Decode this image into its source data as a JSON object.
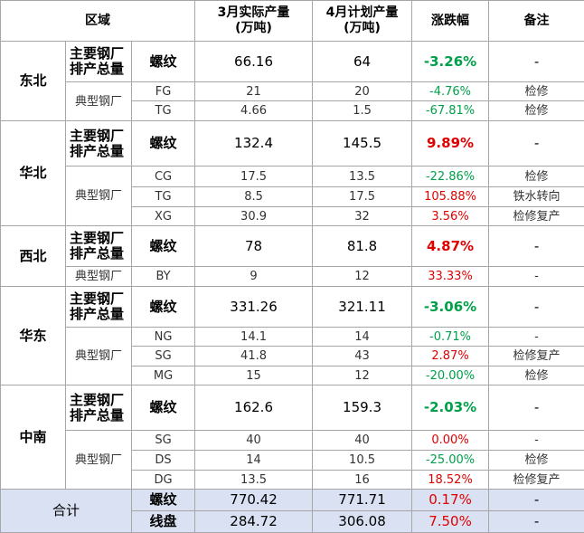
{
  "header": [
    [
      "区域"
    ],
    [
      "3月实际产量",
      "(万吨)"
    ],
    [
      "4月计划产量",
      "(万吨)"
    ],
    [
      "涨跌幅"
    ],
    [
      "备注"
    ]
  ],
  "regions": [
    {
      "name": "东北",
      "main": {
        "label": [
          "主要钢厂",
          "排产总量"
        ],
        "product": "螺纹",
        "mar": 66.16,
        "apr": 64,
        "change": "-3.26%",
        "note": "-"
      },
      "typical_label": "典型钢厂",
      "plants": [
        {
          "name": "FG",
          "mar": 21,
          "apr": 20,
          "change": "-4.76%",
          "note": "检修"
        },
        {
          "name": "TG",
          "mar": 4.66,
          "apr": 1.5,
          "change": "-67.81%",
          "note": "检修"
        }
      ]
    },
    {
      "name": "华北",
      "main": {
        "label": [
          "主要钢厂",
          "排产总量"
        ],
        "product": "螺纹",
        "mar": 132.4,
        "apr": 145.5,
        "change": "9.89%",
        "note": "-"
      },
      "typical_label": "典型钢厂",
      "plants": [
        {
          "name": "CG",
          "mar": 17.5,
          "apr": 13.5,
          "change": "-22.86%",
          "note": "检修"
        },
        {
          "name": "TG",
          "mar": 8.5,
          "apr": 17.5,
          "change": "105.88%",
          "note": "铁水转向"
        },
        {
          "name": "XG",
          "mar": 30.9,
          "apr": 32,
          "change": "3.56%",
          "note": "检修复产"
        }
      ]
    },
    {
      "name": "西北",
      "main": {
        "label": [
          "主要钢厂",
          "排产总量"
        ],
        "product": "螺纹",
        "mar": 78,
        "apr": 81.8,
        "change": "4.87%",
        "note": "-"
      },
      "typical_label": "典型钢厂",
      "plants": [
        {
          "name": "BY",
          "mar": 9,
          "apr": 12,
          "change": "33.33%",
          "note": "-"
        }
      ]
    },
    {
      "name": "华东",
      "main": {
        "label": [
          "主要钢厂",
          "排产总量"
        ],
        "product": "螺纹",
        "mar": 331.26,
        "apr": 321.11,
        "change": "-3.06%",
        "note": "-"
      },
      "typical_label": "典型钢厂",
      "plants": [
        {
          "name": "NG",
          "mar": 14.1,
          "apr": 14,
          "change": "-0.71%",
          "note": "-"
        },
        {
          "name": "SG",
          "mar": 41.8,
          "apr": 43,
          "change": "2.87%",
          "note": "检修复产"
        },
        {
          "name": "MG",
          "mar": 15,
          "apr": 12,
          "change": "-20.00%",
          "note": "检修"
        }
      ]
    },
    {
      "name": "中南",
      "main": {
        "label": [
          "主要钢厂",
          "排产总量"
        ],
        "product": "螺纹",
        "mar": 162.6,
        "apr": 159.3,
        "change": "-2.03%",
        "note": "-"
      },
      "typical_label": "典型钢厂",
      "plants": [
        {
          "name": "SG",
          "mar": 40,
          "apr": 40,
          "change": "0.00%",
          "note": "-"
        },
        {
          "name": "DS",
          "mar": 14,
          "apr": 10.5,
          "change": "-25.00%",
          "note": "检修"
        },
        {
          "name": "DG",
          "mar": 13.5,
          "apr": 16,
          "change": "18.52%",
          "note": "检修复产"
        }
      ]
    }
  ],
  "total": {
    "label": "合计",
    "rows": [
      {
        "product": "螺纹",
        "mar": 770.42,
        "apr": 771.71,
        "change": "0.17%",
        "note": "-"
      },
      {
        "product": "线盘",
        "mar": 284.72,
        "apr": 306.08,
        "change": "7.50%",
        "note": "-"
      }
    ]
  }
}
